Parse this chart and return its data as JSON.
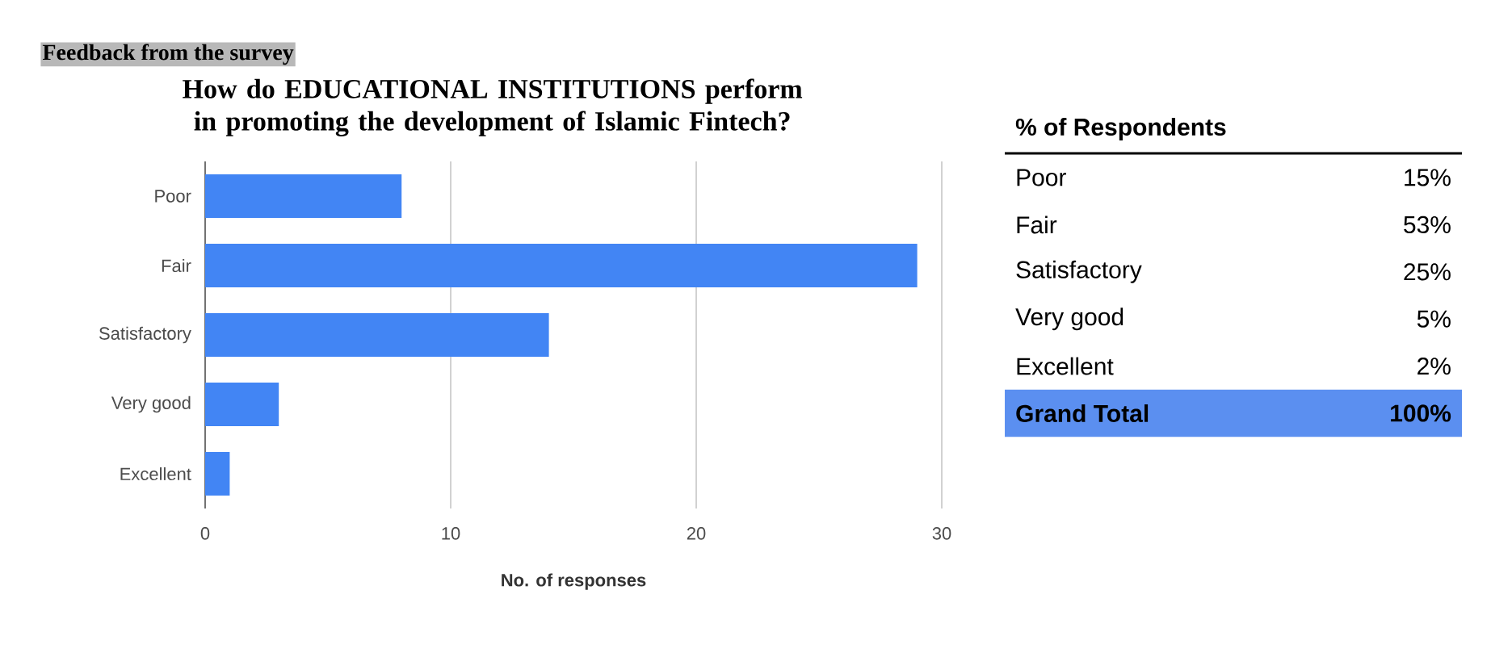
{
  "chart_data": [
    {
      "type": "bar",
      "orientation": "horizontal",
      "title": "How do EDUCATIONAL INSTITUTIONS perform in promoting the development of Islamic Fintech?",
      "annotations": [
        "Feedback from the survey"
      ],
      "xlabel": "No. of responses",
      "categories": [
        "Poor",
        "Fair",
        "Satisfactory",
        "Very good",
        "Excellent"
      ],
      "values": [
        8,
        29,
        14,
        3,
        1
      ],
      "color": "#4285f4",
      "xlim": [
        0,
        30
      ],
      "xticks": [
        0,
        10,
        20,
        30
      ],
      "grid": "x"
    },
    {
      "type": "other",
      "title": "% of Respondents",
      "categories": [
        "Poor",
        "Fair",
        "Satisfactory",
        "Very good",
        "Excellent",
        "Grand Total"
      ],
      "value_labels": [
        "15%",
        "53%",
        "25%",
        "5%",
        "2%",
        "100%"
      ],
      "colors": [
        null,
        null,
        null,
        null,
        null,
        "#5b8ff0"
      ]
    }
  ]
}
